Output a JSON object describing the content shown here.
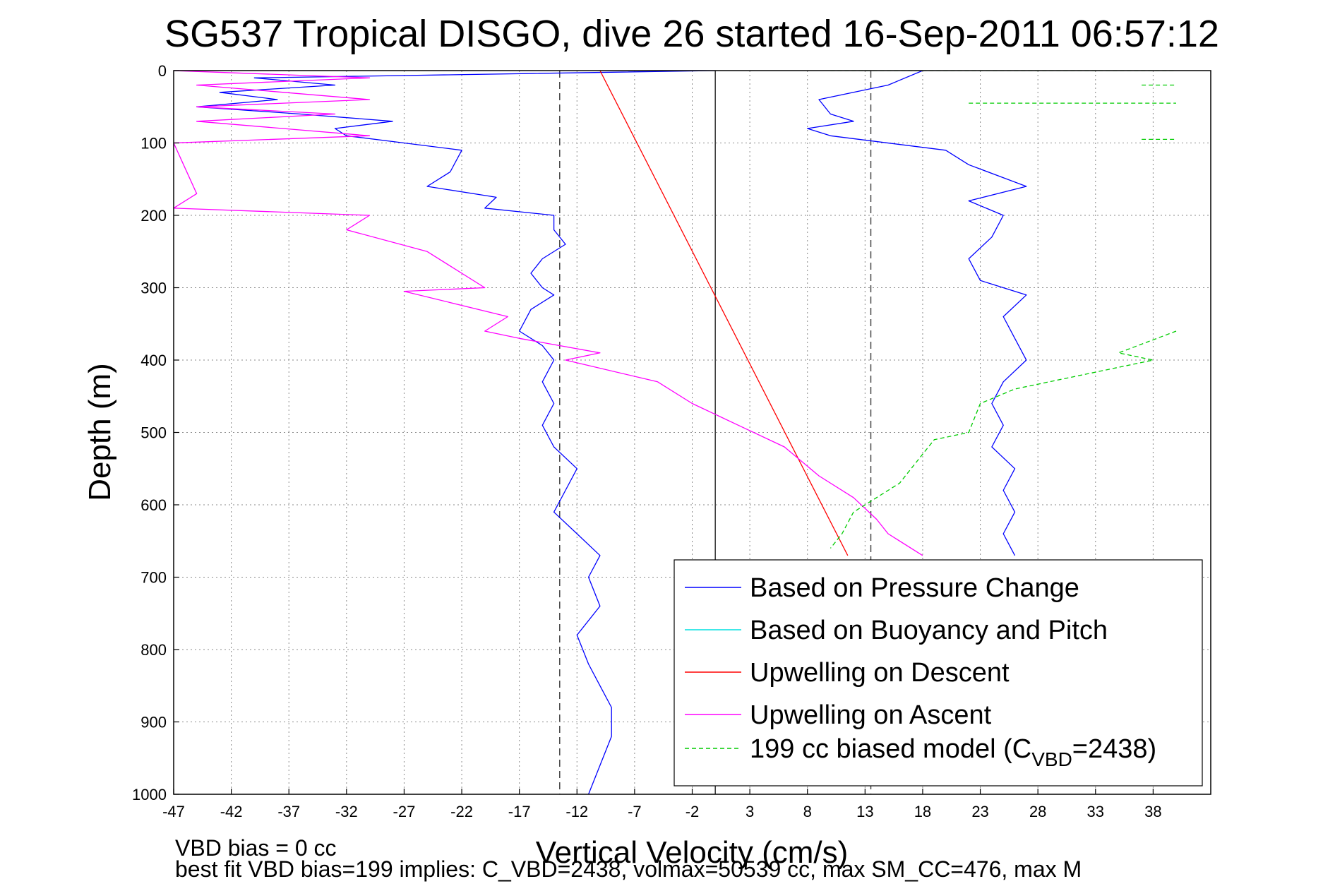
{
  "chart_data": {
    "type": "line",
    "title": "SG537 Tropical DISGO, dive 26 started 16-Sep-2011 06:57:12",
    "xlabel": "Vertical Velocity (cm/s)",
    "ylabel": "Depth (m)",
    "xlim": [
      -47,
      43
    ],
    "ylim": [
      0,
      1000
    ],
    "y_reversed": true,
    "grid": true,
    "xticks": [
      "-47",
      "-42",
      "-37",
      "-32",
      "-27",
      "-22",
      "-17",
      "-12",
      "-7",
      "-2",
      "3",
      "8",
      "13",
      "18",
      "23",
      "28",
      "33",
      "38"
    ],
    "yticks": [
      "0",
      "100",
      "200",
      "300",
      "400",
      "500",
      "600",
      "700",
      "800",
      "900",
      "1000"
    ],
    "legend_position": "bottom-right",
    "legend": [
      {
        "label": "Based on Pressure Change",
        "color": "#0000ff"
      },
      {
        "label": "Based on Buoyancy and Pitch",
        "color": "#00e0e0"
      },
      {
        "label": "Upwelling on Descent",
        "color": "#ff0000"
      },
      {
        "label": "Upwelling on Ascent",
        "color": "#ff00ff"
      },
      {
        "label": "199 cc biased model (C",
        "sub": "VBD",
        "suffix": "=2438)",
        "color": "#00cc00",
        "dashed": true
      }
    ],
    "reference_lines": {
      "zero_solid_x": 0,
      "dashed_x": [
        -13.5,
        13.5
      ]
    },
    "series": [
      {
        "name": "Based on Pressure Change",
        "color": "#0000ff",
        "segment": "descent",
        "points": [
          [
            0,
            0
          ],
          [
            -40,
            10
          ],
          [
            -33,
            20
          ],
          [
            -43,
            30
          ],
          [
            -38,
            40
          ],
          [
            -45,
            50
          ],
          [
            -36,
            60
          ],
          [
            -28,
            70
          ],
          [
            -33,
            80
          ],
          [
            -32,
            90
          ],
          [
            -27,
            100
          ],
          [
            -22,
            110
          ],
          [
            -23,
            140
          ],
          [
            -25,
            160
          ],
          [
            -19,
            175
          ],
          [
            -20,
            190
          ],
          [
            -14,
            200
          ],
          [
            -14,
            220
          ],
          [
            -13,
            240
          ],
          [
            -15,
            260
          ],
          [
            -16,
            280
          ],
          [
            -15,
            300
          ],
          [
            -14,
            310
          ],
          [
            -16,
            330
          ],
          [
            -17,
            360
          ],
          [
            -15,
            380
          ],
          [
            -14,
            400
          ],
          [
            -15,
            430
          ],
          [
            -14,
            460
          ],
          [
            -15,
            490
          ],
          [
            -14,
            520
          ],
          [
            -12,
            550
          ],
          [
            -13,
            580
          ],
          [
            -14,
            610
          ],
          [
            -12,
            640
          ],
          [
            -10,
            670
          ],
          [
            -11,
            700
          ],
          [
            -10,
            740
          ],
          [
            -12,
            780
          ],
          [
            -11,
            820
          ],
          [
            -10,
            850
          ],
          [
            -9,
            880
          ],
          [
            -9,
            920
          ],
          [
            -10,
            960
          ],
          [
            -11,
            1000
          ]
        ]
      },
      {
        "name": "Based on Pressure Change",
        "color": "#0000ff",
        "segment": "ascent",
        "points": [
          [
            18,
            0
          ],
          [
            15,
            20
          ],
          [
            9,
            40
          ],
          [
            10,
            60
          ],
          [
            12,
            70
          ],
          [
            8,
            80
          ],
          [
            10,
            90
          ],
          [
            20,
            110
          ],
          [
            22,
            130
          ],
          [
            27,
            160
          ],
          [
            22,
            180
          ],
          [
            25,
            200
          ],
          [
            24,
            230
          ],
          [
            22,
            260
          ],
          [
            23,
            290
          ],
          [
            27,
            310
          ],
          [
            25,
            340
          ],
          [
            26,
            370
          ],
          [
            27,
            400
          ],
          [
            25,
            430
          ],
          [
            24,
            460
          ],
          [
            25,
            490
          ],
          [
            24,
            520
          ],
          [
            26,
            550
          ],
          [
            25,
            580
          ],
          [
            26,
            610
          ],
          [
            25,
            640
          ],
          [
            26,
            670
          ]
        ]
      },
      {
        "name": "Upwelling on Descent",
        "color": "#ff0000",
        "points": [
          [
            -10,
            0
          ],
          [
            11.5,
            670
          ]
        ]
      },
      {
        "name": "Upwelling on Ascent",
        "color": "#ff00ff",
        "points": [
          [
            -47,
            0
          ],
          [
            -30,
            10
          ],
          [
            -45,
            20
          ],
          [
            -30,
            40
          ],
          [
            -45,
            50
          ],
          [
            -33,
            60
          ],
          [
            -45,
            70
          ],
          [
            -30,
            90
          ],
          [
            -47,
            100
          ],
          [
            -45,
            170
          ],
          [
            -47,
            190
          ],
          [
            -30,
            200
          ],
          [
            -32,
            220
          ],
          [
            -25,
            250
          ],
          [
            -20,
            300
          ],
          [
            -27,
            305
          ],
          [
            -18,
            340
          ],
          [
            -20,
            360
          ],
          [
            -17,
            370
          ],
          [
            -10,
            390
          ],
          [
            -13,
            400
          ],
          [
            -5,
            430
          ],
          [
            -2,
            460
          ],
          [
            2,
            490
          ],
          [
            6,
            520
          ],
          [
            9,
            560
          ],
          [
            12,
            590
          ],
          [
            14,
            620
          ],
          [
            15,
            640
          ],
          [
            18,
            670
          ]
        ]
      },
      {
        "name": "199 cc biased model (CVBD=2438)",
        "color": "#00cc00",
        "dashed": true,
        "points": [
          [
            10,
            0
          ],
          [
            40,
            0
          ]
        ],
        "extra": [
          [
            [
              22,
              45
            ],
            [
              40,
              45
            ]
          ],
          [
            [
              37,
              20
            ],
            [
              40,
              20
            ]
          ],
          [
            [
              37,
              95
            ],
            [
              40,
              95
            ]
          ],
          [
            [
              40,
              360
            ],
            [
              35,
              390
            ],
            [
              38,
              400
            ],
            [
              32,
              420
            ],
            [
              26,
              440
            ],
            [
              23,
              460
            ],
            [
              22,
              500
            ],
            [
              19,
              510
            ],
            [
              18,
              530
            ],
            [
              17,
              550
            ],
            [
              16,
              570
            ],
            [
              14,
              590
            ],
            [
              12,
              610
            ],
            [
              11,
              640
            ],
            [
              10,
              660
            ]
          ]
        ]
      }
    ],
    "footer": [
      "VBD bias = 0 cc",
      "best fit VBD bias=199 implies: C_VBD=2438, volmax=50539 cc, max SM_CC=476, max M"
    ]
  }
}
